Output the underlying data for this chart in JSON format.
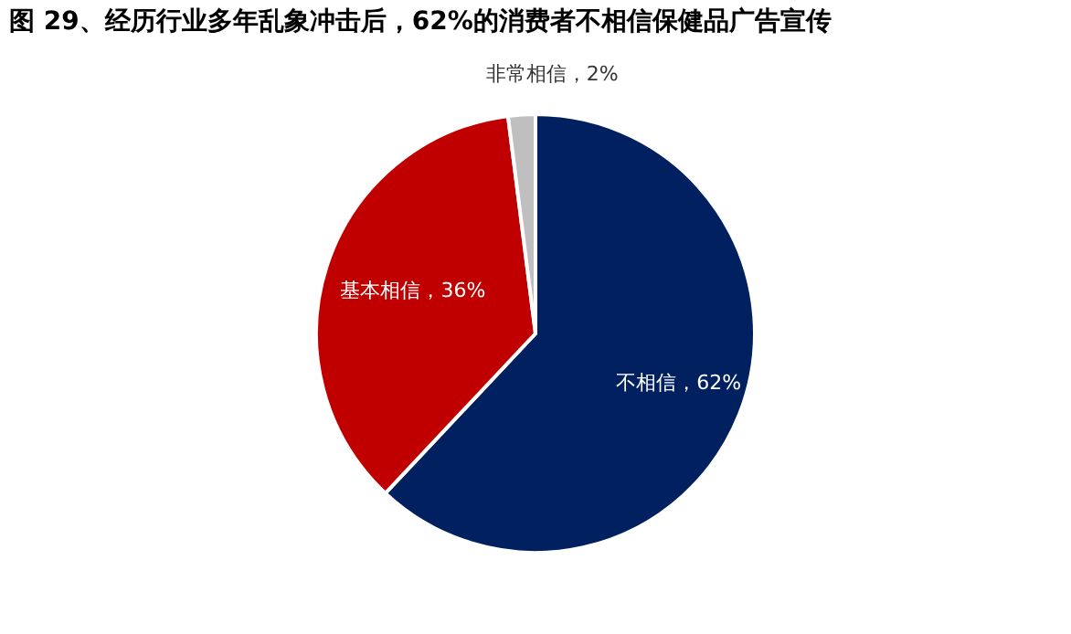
{
  "chart_data": {
    "type": "pie",
    "title": "图 29、经历行业多年乱象冲击后，62%的消费者不相信保健品广告宣传",
    "categories": [
      "不相信",
      "基本相信",
      "非常相信"
    ],
    "values": [
      62,
      36,
      2
    ],
    "colors": [
      "#002060",
      "#c00000",
      "#bfbfbf"
    ],
    "value_labels": [
      "，62%",
      "，36%",
      "，2%"
    ],
    "legend": false
  }
}
